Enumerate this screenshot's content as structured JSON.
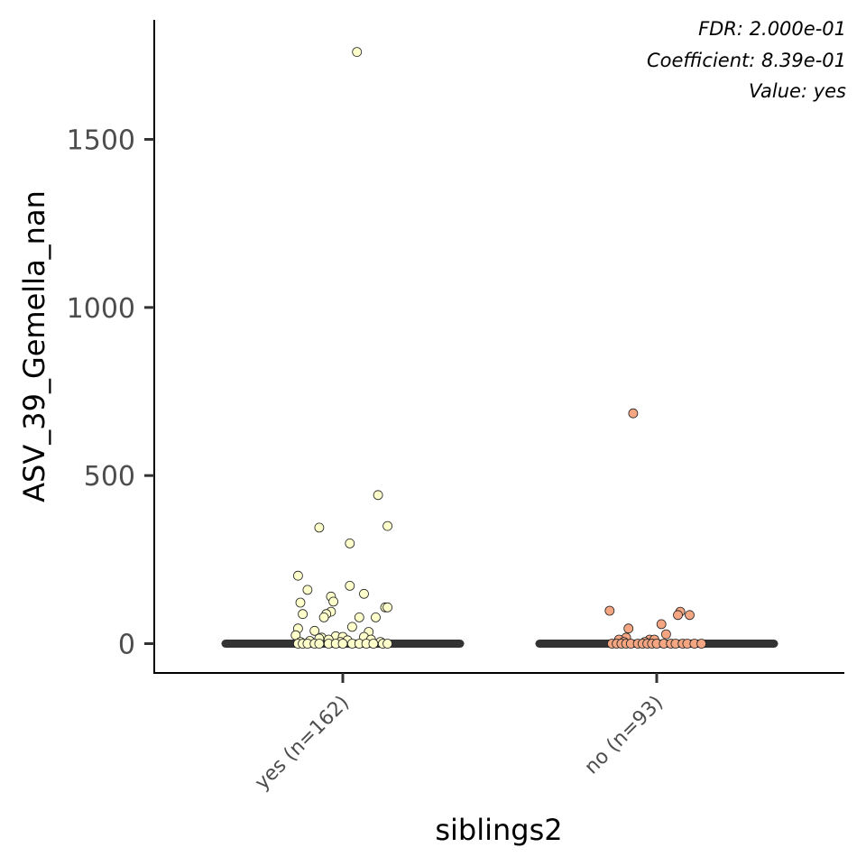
{
  "chart_data": {
    "type": "scatter",
    "xlabel": "siblings2",
    "ylabel": "ASV_39_Gemella_nan",
    "categories": [
      "yes (n=162)",
      "no (n=93)"
    ],
    "ylim": [
      -90,
      1850
    ],
    "yticks": [
      0,
      500,
      1000,
      1500
    ],
    "ytick_labels": [
      "0",
      "500",
      "1000",
      "1500"
    ],
    "grid": false,
    "legend": "none",
    "annotations": [
      "FDR: 2.000e-01",
      "Coefficient: 8.39e-01",
      "Value: yes"
    ],
    "median_line_color": "#333333",
    "series": [
      {
        "category": "yes (n=162)",
        "color": "#ffffcc",
        "points": [
          [
            0.06,
            1760
          ],
          [
            0.15,
            442
          ],
          [
            0.19,
            350
          ],
          [
            -0.1,
            345
          ],
          [
            0.03,
            298
          ],
          [
            -0.19,
            202
          ],
          [
            -0.15,
            160
          ],
          [
            0.09,
            148
          ],
          [
            0.03,
            172
          ],
          [
            -0.05,
            140
          ],
          [
            -0.04,
            125
          ],
          [
            -0.18,
            122
          ],
          [
            0.18,
            108
          ],
          [
            0.19,
            108
          ],
          [
            -0.05,
            95
          ],
          [
            -0.07,
            88
          ],
          [
            -0.17,
            88
          ],
          [
            0.14,
            78
          ],
          [
            -0.08,
            78
          ],
          [
            0.07,
            78
          ],
          [
            0.04,
            50
          ],
          [
            -0.19,
            45
          ],
          [
            -0.12,
            38
          ],
          [
            0.11,
            35
          ],
          [
            -0.2,
            25
          ],
          [
            -0.03,
            22
          ],
          [
            0.0,
            20
          ],
          [
            0.09,
            20
          ],
          [
            -0.09,
            18
          ],
          [
            -0.1,
            15
          ],
          [
            -0.06,
            12
          ],
          [
            0.12,
            12
          ],
          [
            0.02,
            10
          ],
          [
            -0.14,
            8
          ],
          [
            -0.18,
            5
          ],
          [
            -0.01,
            5
          ],
          [
            0.16,
            5
          ],
          [
            -0.19,
            0
          ],
          [
            -0.17,
            0
          ],
          [
            -0.15,
            0
          ],
          [
            -0.12,
            0
          ],
          [
            -0.1,
            0
          ],
          [
            -0.06,
            0
          ],
          [
            -0.03,
            0
          ],
          [
            0.0,
            0
          ],
          [
            0.04,
            0
          ],
          [
            0.07,
            0
          ],
          [
            0.1,
            0
          ],
          [
            0.13,
            0
          ],
          [
            0.17,
            0
          ],
          [
            0.19,
            0
          ]
        ]
      },
      {
        "category": "no (n=93)",
        "color": "#f4a582",
        "points": [
          [
            -0.1,
            685
          ],
          [
            -0.2,
            98
          ],
          [
            0.1,
            95
          ],
          [
            0.09,
            85
          ],
          [
            0.14,
            85
          ],
          [
            0.02,
            58
          ],
          [
            -0.12,
            45
          ],
          [
            0.04,
            28
          ],
          [
            -0.13,
            18
          ],
          [
            -0.16,
            12
          ],
          [
            -0.03,
            12
          ],
          [
            -0.01,
            12
          ],
          [
            -0.14,
            5
          ],
          [
            -0.05,
            5
          ],
          [
            -0.19,
            0
          ],
          [
            -0.17,
            0
          ],
          [
            -0.15,
            0
          ],
          [
            -0.13,
            0
          ],
          [
            -0.11,
            0
          ],
          [
            -0.08,
            0
          ],
          [
            -0.06,
            0
          ],
          [
            -0.04,
            0
          ],
          [
            -0.02,
            0
          ],
          [
            0.0,
            0
          ],
          [
            0.03,
            0
          ],
          [
            0.06,
            0
          ],
          [
            0.08,
            0
          ],
          [
            0.11,
            0
          ],
          [
            0.13,
            0
          ],
          [
            0.16,
            0
          ],
          [
            0.19,
            0
          ]
        ]
      }
    ]
  }
}
